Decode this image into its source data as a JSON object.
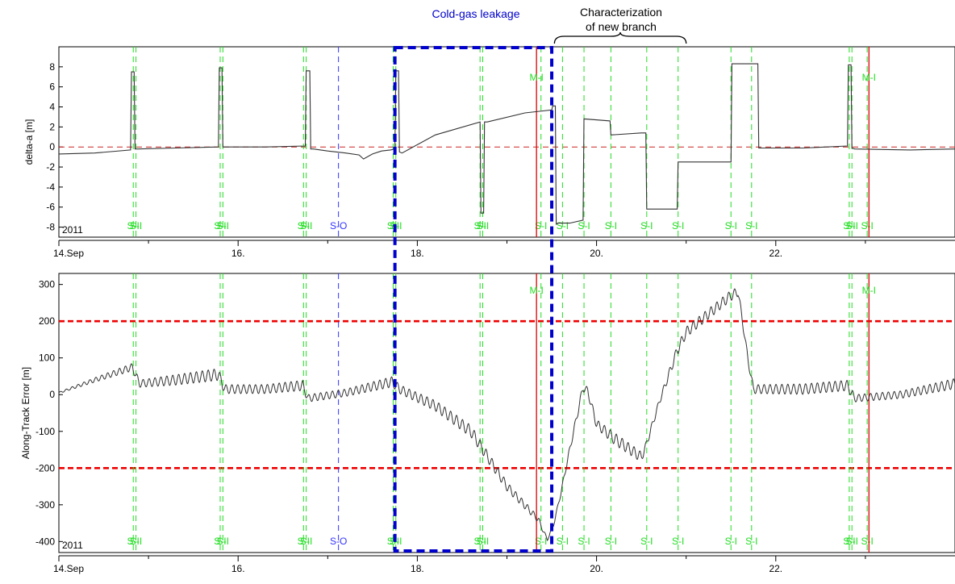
{
  "annotations": {
    "leakage": "Cold-gas leakage",
    "branch_line1": "Characterization",
    "branch_line2": "of new branch"
  },
  "colors": {
    "event_green": "#22dd22",
    "event_blue": "#3333ff",
    "maneuver_red": "#dd1111",
    "threshold_red": "#ee0000",
    "box_blue": "#0000cc",
    "data_line": "#333333"
  },
  "chart_data": [
    {
      "type": "line",
      "ylabel": "delta-a [m]",
      "year_label": "2011",
      "xlim": [
        14.0,
        24.0
      ],
      "ylim": [
        -9,
        10
      ],
      "yticks": [
        -8,
        -6,
        -4,
        -2,
        0,
        2,
        4,
        6,
        8
      ],
      "xticks": [
        {
          "value": 14,
          "label": "14.Sep"
        },
        {
          "value": 16,
          "label": "16."
        },
        {
          "value": 18,
          "label": "18."
        },
        {
          "value": 20,
          "label": "20."
        },
        {
          "value": 22,
          "label": "22."
        }
      ],
      "reference_line": 0,
      "x": [
        14.0,
        14.4,
        14.8,
        14.81,
        14.84,
        14.85,
        14.88,
        15.3,
        15.78,
        15.79,
        15.82,
        15.83,
        15.86,
        16.3,
        16.75,
        16.76,
        16.8,
        16.81,
        16.84,
        17.0,
        17.2,
        17.35,
        17.4,
        17.5,
        17.6,
        17.7,
        17.75,
        17.76,
        17.79,
        17.8,
        17.83,
        18.2,
        18.7,
        18.71,
        18.74,
        18.75,
        18.78,
        19.2,
        19.5,
        19.51,
        19.54,
        19.55,
        19.57,
        19.7,
        19.85,
        19.86,
        20.15,
        20.16,
        20.5,
        20.55,
        20.56,
        20.9,
        20.91,
        21.5,
        21.51,
        21.8,
        21.81,
        22.3,
        22.8,
        22.81,
        22.84,
        22.85,
        22.88,
        23.5,
        24.0
      ],
      "y": [
        -0.7,
        -0.6,
        -0.3,
        7.5,
        7.5,
        -0.2,
        -0.2,
        -0.1,
        0.0,
        7.9,
        7.9,
        0.0,
        0.0,
        0.0,
        0.1,
        7.6,
        7.6,
        -0.2,
        -0.2,
        -0.4,
        -0.6,
        -0.8,
        -1.2,
        -0.7,
        -0.4,
        -0.3,
        -0.2,
        7.6,
        7.6,
        -0.5,
        -0.6,
        1.2,
        2.5,
        -6.6,
        -6.6,
        2.5,
        2.5,
        3.4,
        3.7,
        4.1,
        4.1,
        -7.7,
        -7.6,
        -7.6,
        -7.3,
        2.8,
        2.6,
        1.2,
        1.4,
        1.4,
        -6.2,
        -6.2,
        -1.5,
        -1.5,
        8.3,
        8.3,
        -0.1,
        -0.1,
        0.1,
        8.2,
        8.2,
        -0.1,
        -0.2,
        -0.3,
        -0.2
      ]
    },
    {
      "type": "line",
      "ylabel": "Along-Track Error [m]",
      "year_label": "2011",
      "xlim": [
        14.0,
        24.0
      ],
      "ylim": [
        -430,
        330
      ],
      "yticks": [
        -400,
        -300,
        -200,
        -100,
        0,
        100,
        200,
        300
      ],
      "xticks": [
        {
          "value": 14,
          "label": "14.Sep"
        },
        {
          "value": 16,
          "label": "16."
        },
        {
          "value": 18,
          "label": "18."
        },
        {
          "value": 20,
          "label": "20."
        },
        {
          "value": 22,
          "label": "22."
        }
      ],
      "thresholds": [
        200,
        -200
      ],
      "oscillation_period_days": 0.066,
      "x": [
        14.0,
        14.4,
        14.82,
        14.9,
        15.3,
        15.78,
        15.85,
        16.3,
        16.72,
        16.78,
        17.2,
        17.72,
        17.8,
        18.2,
        18.6,
        19.0,
        19.35,
        19.45,
        19.52,
        19.6,
        19.7,
        19.85,
        19.9,
        20.0,
        20.2,
        20.5,
        20.55,
        20.7,
        20.9,
        21.0,
        21.2,
        21.5,
        21.58,
        21.7,
        21.75,
        22.3,
        22.8,
        22.88,
        23.4,
        24.0
      ],
      "y": [
        5,
        40,
        75,
        30,
        40,
        55,
        15,
        15,
        25,
        -10,
        5,
        35,
        15,
        -30,
        -100,
        -250,
        -340,
        -395,
        -355,
        -270,
        -150,
        20,
        10,
        -80,
        -120,
        -170,
        -140,
        -20,
        120,
        170,
        210,
        270,
        280,
        80,
        15,
        15,
        25,
        -10,
        0,
        30
      ],
      "osc_amp": [
        2,
        6,
        10,
        10,
        14,
        16,
        12,
        12,
        14,
        10,
        10,
        14,
        12,
        14,
        16,
        12,
        8,
        4,
        4,
        6,
        8,
        12,
        10,
        12,
        16,
        14,
        10,
        8,
        14,
        14,
        14,
        14,
        12,
        8,
        12,
        14,
        14,
        10,
        10,
        14
      ]
    }
  ],
  "events_top": [
    {
      "x": 14.83,
      "label": "S-I",
      "color": "green"
    },
    {
      "x": 14.86,
      "label": "S-I",
      "color": "green"
    },
    {
      "x": 15.8,
      "label": "S-I",
      "color": "green"
    },
    {
      "x": 15.83,
      "label": "S-I",
      "color": "green"
    },
    {
      "x": 16.73,
      "label": "S-I",
      "color": "green"
    },
    {
      "x": 16.76,
      "label": "S-I",
      "color": "green"
    },
    {
      "x": 17.12,
      "label": "S-O",
      "color": "blue"
    },
    {
      "x": 17.73,
      "label": "S-I",
      "color": "green"
    },
    {
      "x": 17.76,
      "label": "S-I",
      "color": "green"
    },
    {
      "x": 18.7,
      "label": "S-I",
      "color": "green"
    },
    {
      "x": 18.73,
      "label": "S-I",
      "color": "green"
    },
    {
      "x": 19.38,
      "label": "S-I",
      "color": "green"
    },
    {
      "x": 19.62,
      "label": "S-I",
      "color": "green"
    },
    {
      "x": 19.86,
      "label": "S-I",
      "color": "green"
    },
    {
      "x": 20.16,
      "label": "S-I",
      "color": "green"
    },
    {
      "x": 20.56,
      "label": "S-I",
      "color": "green"
    },
    {
      "x": 20.91,
      "label": "S-I",
      "color": "green"
    },
    {
      "x": 21.5,
      "label": "S-I",
      "color": "green"
    },
    {
      "x": 21.73,
      "label": "S-I",
      "color": "green"
    },
    {
      "x": 22.82,
      "label": "S-I",
      "color": "green"
    },
    {
      "x": 22.85,
      "label": "S-I",
      "color": "green"
    },
    {
      "x": 23.02,
      "label": "S-I",
      "color": "green"
    }
  ],
  "events_bottom": [
    {
      "x": 14.83,
      "label": "S-I",
      "color": "green"
    },
    {
      "x": 14.86,
      "label": "S-I",
      "color": "green"
    },
    {
      "x": 15.8,
      "label": "S-I",
      "color": "green"
    },
    {
      "x": 15.83,
      "label": "S-I",
      "color": "green"
    },
    {
      "x": 16.73,
      "label": "S-I",
      "color": "green"
    },
    {
      "x": 16.76,
      "label": "S-I",
      "color": "green"
    },
    {
      "x": 17.12,
      "label": "S-O",
      "color": "blue"
    },
    {
      "x": 17.73,
      "label": "S-I",
      "color": "green"
    },
    {
      "x": 17.76,
      "label": "S-I",
      "color": "green"
    },
    {
      "x": 18.7,
      "label": "S-I",
      "color": "green"
    },
    {
      "x": 18.73,
      "label": "S-I",
      "color": "green"
    },
    {
      "x": 19.38,
      "label": "S-I",
      "color": "green"
    },
    {
      "x": 19.62,
      "label": "S-I",
      "color": "green"
    },
    {
      "x": 19.86,
      "label": "S-I",
      "color": "green"
    },
    {
      "x": 20.16,
      "label": "S-I",
      "color": "green"
    },
    {
      "x": 20.56,
      "label": "S-I",
      "color": "green"
    },
    {
      "x": 20.91,
      "label": "S-I",
      "color": "green"
    },
    {
      "x": 21.5,
      "label": "S-I",
      "color": "green"
    },
    {
      "x": 21.73,
      "label": "S-I",
      "color": "green"
    },
    {
      "x": 22.82,
      "label": "S-I",
      "color": "green"
    },
    {
      "x": 22.85,
      "label": "S-I",
      "color": "green"
    },
    {
      "x": 23.02,
      "label": "S-I",
      "color": "green"
    }
  ],
  "maneuvers": [
    {
      "x": 19.33,
      "label": "M-I"
    },
    {
      "x": 23.04,
      "label": "M-I"
    }
  ],
  "leakage_box": {
    "x_start": 17.75,
    "x_end": 19.5
  },
  "branch_brace": {
    "x_start": 19.53,
    "x_end": 21.0
  }
}
